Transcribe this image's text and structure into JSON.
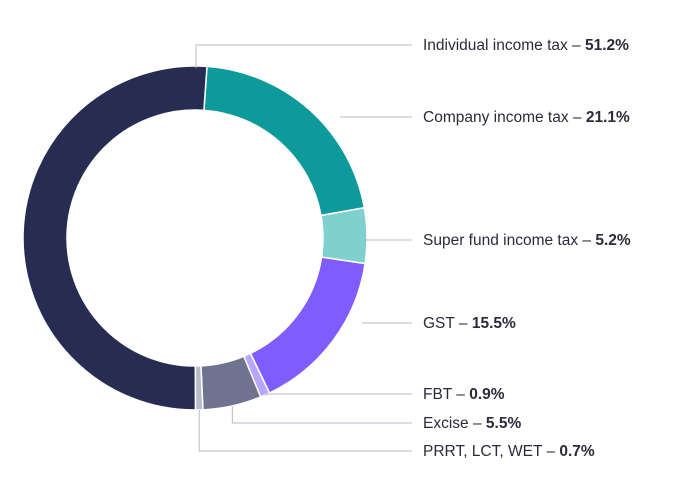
{
  "chart_data": {
    "type": "pie",
    "variant": "donut",
    "title": "",
    "legend_placement": "right (leader-line callouts)",
    "slices": [
      {
        "label": "Individual income tax",
        "value": 51.2,
        "value_text": "51.2%",
        "color": "#272d52"
      },
      {
        "label": "Company income tax",
        "value": 21.1,
        "value_text": "21.1%",
        "color": "#0e9a9a"
      },
      {
        "label": "Super fund income tax",
        "value": 5.2,
        "value_text": "5.2%",
        "color": "#7fd1cf"
      },
      {
        "label": "GST",
        "value": 15.5,
        "value_text": "15.5%",
        "color": "#7f5cff"
      },
      {
        "label": "FBT",
        "value": 0.9,
        "value_text": "0.9%",
        "color": "#b7a6ff"
      },
      {
        "label": "Excise",
        "value": 5.5,
        "value_text": "5.5%",
        "color": "#6f7390"
      },
      {
        "label": "PRRT, LCT, WET",
        "value": 0.7,
        "value_text": "0.7%",
        "color": "#b9bccb"
      }
    ],
    "separator": " – "
  }
}
